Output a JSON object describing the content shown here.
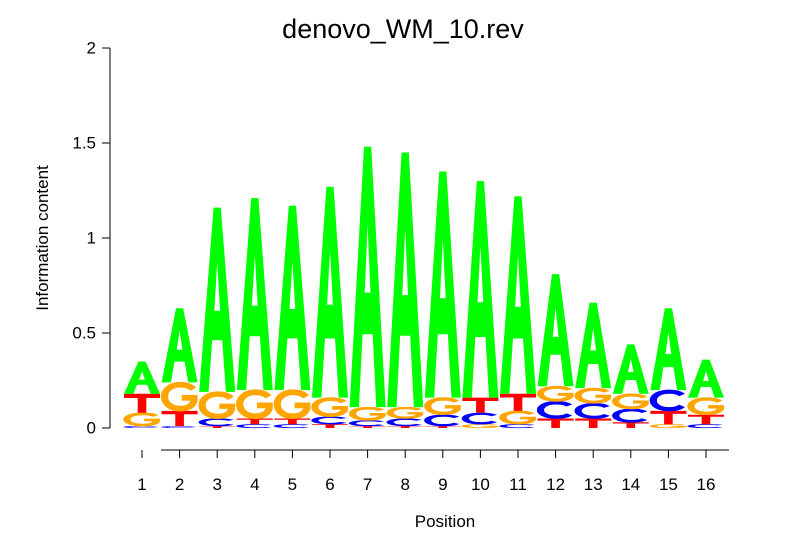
{
  "chart_data": {
    "type": "sequence-logo",
    "title": "denovo_WM_10.rev",
    "xlabel": "Position",
    "ylabel": "Information content",
    "ylim": [
      0,
      2
    ],
    "y_ticks": [
      "0",
      "0.5",
      "1",
      "1.5",
      "2"
    ],
    "positions": [
      "1",
      "2",
      "3",
      "4",
      "5",
      "6",
      "7",
      "8",
      "9",
      "10",
      "11",
      "12",
      "13",
      "14",
      "15",
      "16"
    ],
    "colors": {
      "A": "#00ff00",
      "C": "#0000ff",
      "G": "#ffa500",
      "T": "#ff0000"
    },
    "stacks": [
      [
        {
          "base": "C",
          "height": 0.01
        },
        {
          "base": "G",
          "height": 0.07
        },
        {
          "base": "T",
          "height": 0.1
        },
        {
          "base": "A",
          "height": 0.17
        }
      ],
      [
        {
          "base": "C",
          "height": 0.01
        },
        {
          "base": "T",
          "height": 0.08
        },
        {
          "base": "G",
          "height": 0.15
        },
        {
          "base": "A",
          "height": 0.39
        }
      ],
      [
        {
          "base": "T",
          "height": 0.01
        },
        {
          "base": "C",
          "height": 0.04
        },
        {
          "base": "G",
          "height": 0.14
        },
        {
          "base": "A",
          "height": 0.97
        }
      ],
      [
        {
          "base": "C",
          "height": 0.02
        },
        {
          "base": "T",
          "height": 0.03
        },
        {
          "base": "G",
          "height": 0.15
        },
        {
          "base": "A",
          "height": 1.01
        }
      ],
      [
        {
          "base": "C",
          "height": 0.02
        },
        {
          "base": "T",
          "height": 0.03
        },
        {
          "base": "G",
          "height": 0.15
        },
        {
          "base": "A",
          "height": 0.97
        }
      ],
      [
        {
          "base": "T",
          "height": 0.02
        },
        {
          "base": "C",
          "height": 0.04
        },
        {
          "base": "G",
          "height": 0.1
        },
        {
          "base": "A",
          "height": 1.11
        }
      ],
      [
        {
          "base": "T",
          "height": 0.01
        },
        {
          "base": "C",
          "height": 0.03
        },
        {
          "base": "G",
          "height": 0.07
        },
        {
          "base": "A",
          "height": 1.37
        }
      ],
      [
        {
          "base": "T",
          "height": 0.01
        },
        {
          "base": "C",
          "height": 0.04
        },
        {
          "base": "G",
          "height": 0.06
        },
        {
          "base": "A",
          "height": 1.34
        }
      ],
      [
        {
          "base": "T",
          "height": 0.01
        },
        {
          "base": "C",
          "height": 0.06
        },
        {
          "base": "G",
          "height": 0.09
        },
        {
          "base": "A",
          "height": 1.19
        }
      ],
      [
        {
          "base": "G",
          "height": 0.02
        },
        {
          "base": "C",
          "height": 0.06
        },
        {
          "base": "T",
          "height": 0.08
        },
        {
          "base": "A",
          "height": 1.14
        }
      ],
      [
        {
          "base": "C",
          "height": 0.02
        },
        {
          "base": "G",
          "height": 0.07
        },
        {
          "base": "T",
          "height": 0.09
        },
        {
          "base": "A",
          "height": 1.04
        }
      ],
      [
        {
          "base": "T",
          "height": 0.05
        },
        {
          "base": "C",
          "height": 0.09
        },
        {
          "base": "G",
          "height": 0.08
        },
        {
          "base": "A",
          "height": 0.59
        }
      ],
      [
        {
          "base": "T",
          "height": 0.05
        },
        {
          "base": "C",
          "height": 0.08
        },
        {
          "base": "G",
          "height": 0.08
        },
        {
          "base": "A",
          "height": 0.45
        }
      ],
      [
        {
          "base": "T",
          "height": 0.03
        },
        {
          "base": "C",
          "height": 0.07
        },
        {
          "base": "G",
          "height": 0.08
        },
        {
          "base": "A",
          "height": 0.26
        }
      ],
      [
        {
          "base": "G",
          "height": 0.02
        },
        {
          "base": "T",
          "height": 0.07
        },
        {
          "base": "C",
          "height": 0.11
        },
        {
          "base": "A",
          "height": 0.43
        }
      ],
      [
        {
          "base": "C",
          "height": 0.02
        },
        {
          "base": "T",
          "height": 0.05
        },
        {
          "base": "G",
          "height": 0.09
        },
        {
          "base": "A",
          "height": 0.2
        }
      ]
    ]
  }
}
